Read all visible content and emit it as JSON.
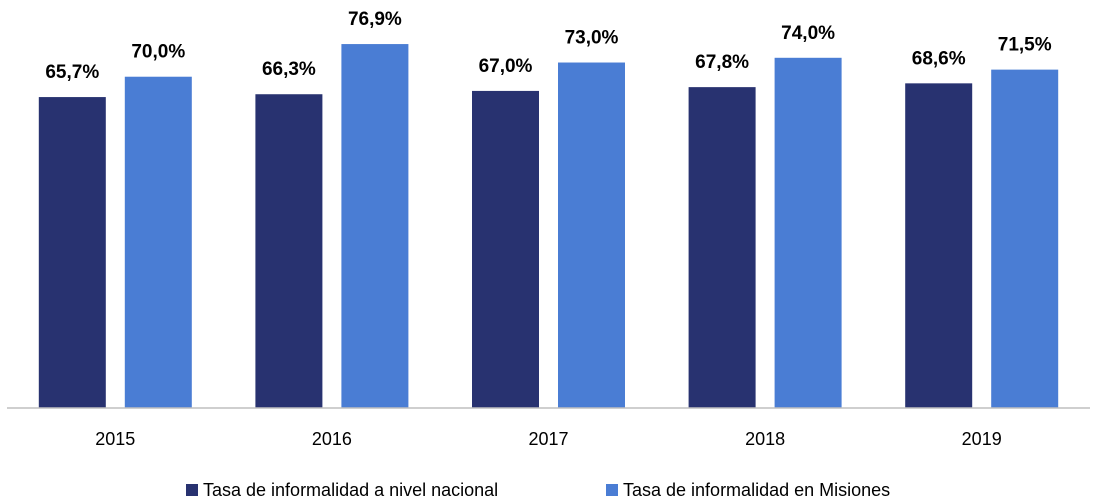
{
  "chart_data": {
    "type": "bar",
    "categories": [
      "2015",
      "2016",
      "2017",
      "2018",
      "2019"
    ],
    "series": [
      {
        "name": "Tasa de informalidad a nivel nacional",
        "color": "#283270",
        "values": [
          65.7,
          66.3,
          67.0,
          67.8,
          68.6
        ],
        "value_labels": [
          "65,7%",
          "66,3%",
          "67,0%",
          "67,8%",
          "68,6%"
        ]
      },
      {
        "name": "Tasa de informalidad en Misiones",
        "color": "#4a7dd4",
        "values": [
          70.0,
          76.9,
          73.0,
          74.0,
          71.5
        ],
        "value_labels": [
          "70,0%",
          "76,9%",
          "73,0%",
          "74,0%",
          "71,5%"
        ]
      }
    ],
    "ylim": [
      0,
      86
    ]
  }
}
